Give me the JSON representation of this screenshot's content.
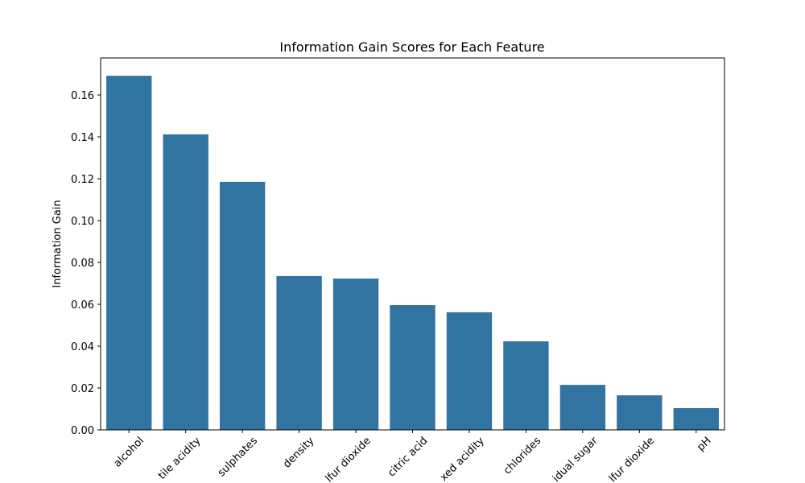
{
  "chart_data": {
    "type": "bar",
    "title": "Information Gain Scores for Each Feature",
    "ylabel": "Information Gain",
    "categories": [
      "alcohol",
      "tile acidity",
      "sulphates",
      "density",
      "lfur dioxide",
      "citric acid",
      "xed acidity",
      "chlorides",
      "idual sugar",
      "lfur dioxide",
      "pH"
    ],
    "values": [
      0.1692,
      0.1412,
      0.1185,
      0.0735,
      0.0723,
      0.0596,
      0.0562,
      0.0423,
      0.0215,
      0.0165,
      0.0104
    ],
    "color": "#3274a1",
    "ylim": [
      0,
      0.1777
    ],
    "yticks": [
      {
        "value": 0,
        "label": "0.00"
      },
      {
        "value": 0.02,
        "label": "0.02"
      },
      {
        "value": 0.04,
        "label": "0.04"
      },
      {
        "value": 0.06,
        "label": "0.06"
      },
      {
        "value": 0.08,
        "label": "0.08"
      },
      {
        "value": 0.1,
        "label": "0.10"
      },
      {
        "value": 0.12,
        "label": "0.12"
      },
      {
        "value": 0.14,
        "label": "0.14"
      },
      {
        "value": 0.16,
        "label": "0.16"
      }
    ],
    "grid": false
  }
}
